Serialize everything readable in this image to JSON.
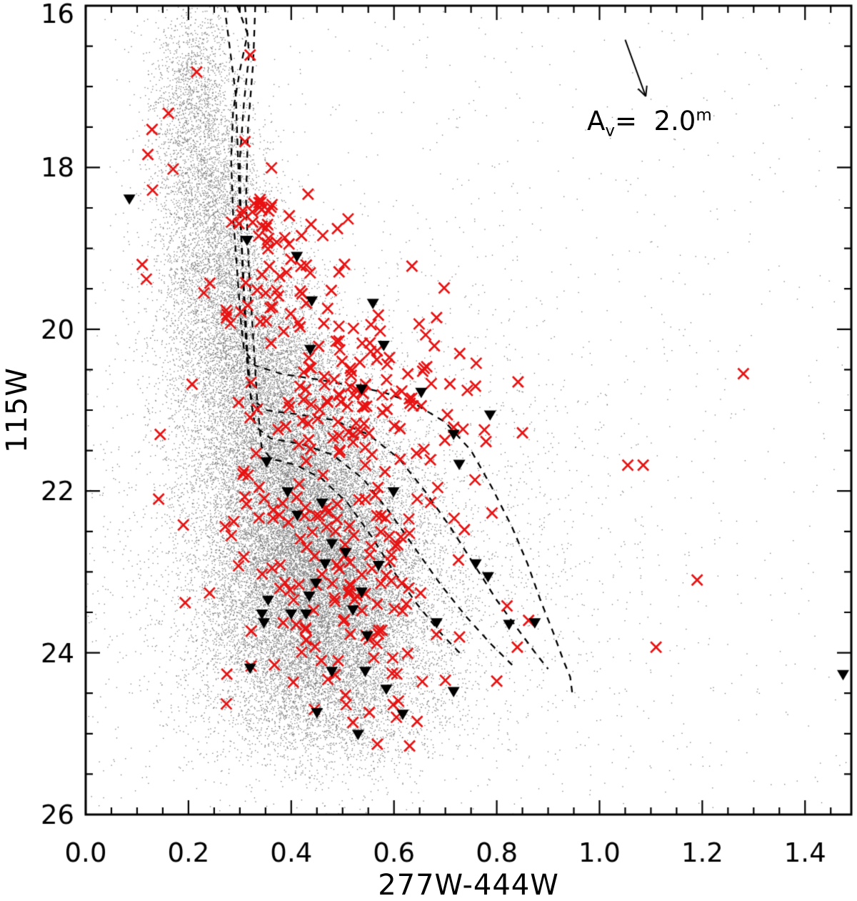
{
  "chart_data": {
    "type": "scatter",
    "title": "",
    "xlabel": "277W-444W",
    "ylabel": "115W",
    "xlim": [
      0.0,
      1.49
    ],
    "ylim": [
      16,
      26
    ],
    "xticks": [
      0.0,
      0.2,
      0.4,
      0.6,
      0.8,
      1.0,
      1.2,
      1.4
    ],
    "xtick_labels": [
      "0.0",
      "0.2",
      "0.4",
      "0.6",
      "0.8",
      "1.0",
      "1.2",
      "1.4"
    ],
    "yticks": [
      16,
      18,
      20,
      22,
      24,
      26
    ],
    "ytick_labels": [
      "16",
      "18",
      "20",
      "22",
      "24",
      "26"
    ],
    "x_minor_step": 0.05,
    "y_minor_step": 0.5,
    "grid": false,
    "legend": "none",
    "annotation": {
      "base": "A",
      "sub": "v",
      "mid": "=  2.0",
      "sup": "m"
    },
    "reddening_vector": {
      "x1": 1.05,
      "y1": 16.42,
      "x2": 1.09,
      "y2": 17.12
    },
    "colors": {
      "frame": "#000000",
      "background_dots": "#787878",
      "red_crosses": "#e81212",
      "black_triangles": "#000000",
      "isochrones": "#000000"
    },
    "series": [
      {
        "name": "gray-dots",
        "marker": "dot",
        "color": "#787878",
        "seed": 12345,
        "clusters": [
          {
            "n": 900,
            "cx": 0.21,
            "cy": 16.8,
            "sx": 0.042,
            "sy": 0.5
          },
          {
            "n": 1400,
            "cx": 0.225,
            "cy": 17.8,
            "sx": 0.052,
            "sy": 0.55
          },
          {
            "n": 1900,
            "cx": 0.26,
            "cy": 18.8,
            "sx": 0.062,
            "sy": 0.55
          },
          {
            "n": 2600,
            "cx": 0.3,
            "cy": 19.8,
            "sx": 0.075,
            "sy": 0.55
          },
          {
            "n": 3600,
            "cx": 0.35,
            "cy": 20.7,
            "sx": 0.09,
            "sy": 0.55
          },
          {
            "n": 5200,
            "cx": 0.41,
            "cy": 21.6,
            "sx": 0.1,
            "sy": 0.55
          },
          {
            "n": 6800,
            "cx": 0.44,
            "cy": 22.5,
            "sx": 0.105,
            "sy": 0.55
          },
          {
            "n": 6300,
            "cx": 0.46,
            "cy": 23.3,
            "sx": 0.11,
            "sy": 0.55
          },
          {
            "n": 3800,
            "cx": 0.47,
            "cy": 24.1,
            "sx": 0.115,
            "sy": 0.5
          },
          {
            "n": 1300,
            "cx": 0.48,
            "cy": 24.8,
            "sx": 0.115,
            "sy": 0.4
          },
          {
            "n": 2600,
            "cx": 0.5,
            "cy": 22.8,
            "sx": 0.28,
            "sy": 1.5
          },
          {
            "n": 1000,
            "cx": 0.6,
            "cy": 21.0,
            "sx": 0.42,
            "sy": 2.6
          }
        ],
        "uniform": {
          "n": 550,
          "x0": 0.02,
          "x1": 1.47,
          "y0": 16.05,
          "y1": 25.9
        },
        "points": []
      },
      {
        "name": "red-x-markers",
        "marker": "x",
        "color": "#e81212",
        "seed": 98765,
        "clusters": [
          {
            "n": 18,
            "cx": 0.335,
            "cy": 18.62,
            "sx": 0.025,
            "sy": 0.22
          },
          {
            "n": 60,
            "cx": 0.405,
            "cy": 19.55,
            "sx": 0.068,
            "sy": 0.62
          },
          {
            "n": 70,
            "cx": 0.5,
            "cy": 20.78,
            "sx": 0.09,
            "sy": 0.45
          },
          {
            "n": 22,
            "cx": 0.615,
            "cy": 21.1,
            "sx": 0.07,
            "sy": 0.55
          },
          {
            "n": 10,
            "cx": 0.73,
            "cy": 21.0,
            "sx": 0.045,
            "sy": 0.65
          },
          {
            "n": 16,
            "cx": 0.335,
            "cy": 21.9,
            "sx": 0.035,
            "sy": 0.9
          },
          {
            "n": 95,
            "cx": 0.465,
            "cy": 23.15,
            "sx": 0.09,
            "sy": 0.82
          },
          {
            "n": 30,
            "cx": 0.64,
            "cy": 23.3,
            "sx": 0.065,
            "sy": 0.85
          },
          {
            "n": 12,
            "cx": 0.56,
            "cy": 22.1,
            "sx": 0.06,
            "sy": 0.4
          }
        ],
        "points": [
          [
            0.216,
            16.82
          ],
          [
            0.32,
            16.61
          ],
          [
            0.161,
            17.33
          ],
          [
            0.129,
            17.53
          ],
          [
            0.121,
            17.84
          ],
          [
            0.17,
            18.02
          ],
          [
            0.13,
            18.28
          ],
          [
            0.31,
            17.68
          ],
          [
            0.11,
            19.2
          ],
          [
            0.118,
            19.38
          ],
          [
            0.23,
            19.55
          ],
          [
            0.207,
            20.68
          ],
          [
            0.145,
            21.3
          ],
          [
            0.142,
            22.1
          ],
          [
            0.19,
            22.42
          ],
          [
            0.241,
            23.26
          ],
          [
            0.635,
            19.22
          ],
          [
            0.728,
            20.3
          ],
          [
            0.76,
            20.42
          ],
          [
            0.85,
            21.28
          ],
          [
            1.28,
            20.55
          ],
          [
            1.055,
            21.68
          ],
          [
            1.085,
            21.68
          ],
          [
            1.19,
            23.1
          ],
          [
            1.11,
            23.93
          ],
          [
            0.84,
            23.93
          ],
          [
            0.82,
            23.42
          ],
          [
            0.862,
            23.6
          ],
          [
            0.8,
            24.35
          ],
          [
            0.645,
            24.85
          ],
          [
            0.7,
            24.34
          ],
          [
            0.52,
            24.86
          ],
          [
            0.445,
            24.7
          ]
        ]
      },
      {
        "name": "black-down-triangles",
        "marker": "triangle-down",
        "color": "#000000",
        "seed": 0,
        "clusters": [],
        "points": [
          [
            0.085,
            18.39
          ],
          [
            0.314,
            18.9
          ],
          [
            0.411,
            19.1
          ],
          [
            0.44,
            19.65
          ],
          [
            0.559,
            19.68
          ],
          [
            0.58,
            20.2
          ],
          [
            0.437,
            20.25
          ],
          [
            0.537,
            20.74
          ],
          [
            0.653,
            20.78
          ],
          [
            0.787,
            21.06
          ],
          [
            0.716,
            21.3
          ],
          [
            0.352,
            21.64
          ],
          [
            0.727,
            21.67
          ],
          [
            0.393,
            22.01
          ],
          [
            0.599,
            22.01
          ],
          [
            0.412,
            22.3
          ],
          [
            0.46,
            22.15
          ],
          [
            0.479,
            22.65
          ],
          [
            0.506,
            22.76
          ],
          [
            0.466,
            22.9
          ],
          [
            0.759,
            22.9
          ],
          [
            0.57,
            22.92
          ],
          [
            0.783,
            23.06
          ],
          [
            0.448,
            23.14
          ],
          [
            0.537,
            23.25
          ],
          [
            0.435,
            23.3
          ],
          [
            0.355,
            23.35
          ],
          [
            0.343,
            23.52
          ],
          [
            0.429,
            23.52
          ],
          [
            0.4,
            23.52
          ],
          [
            0.347,
            23.63
          ],
          [
            0.683,
            23.63
          ],
          [
            0.874,
            23.63
          ],
          [
            0.824,
            23.65
          ],
          [
            0.52,
            23.47
          ],
          [
            0.548,
            23.79
          ],
          [
            0.32,
            24.19
          ],
          [
            0.479,
            24.23
          ],
          [
            0.544,
            24.23
          ],
          [
            1.474,
            24.27
          ],
          [
            0.585,
            24.45
          ],
          [
            0.716,
            24.48
          ],
          [
            0.45,
            24.74
          ],
          [
            0.617,
            24.76
          ],
          [
            0.53,
            25.01
          ]
        ]
      }
    ],
    "isochrones": {
      "color": "#000000",
      "dash": [
        9,
        8
      ],
      "curves": [
        [
          [
            0.295,
            16.0
          ],
          [
            0.315,
            16.35
          ],
          [
            0.3,
            16.8
          ],
          [
            0.287,
            17.3
          ],
          [
            0.283,
            17.9
          ],
          [
            0.287,
            18.6
          ],
          [
            0.295,
            19.3
          ],
          [
            0.302,
            19.9
          ],
          [
            0.308,
            20.25
          ],
          [
            0.33,
            20.45
          ],
          [
            0.38,
            20.55
          ],
          [
            0.45,
            20.62
          ],
          [
            0.52,
            20.7
          ],
          [
            0.58,
            20.78
          ],
          [
            0.64,
            20.92
          ],
          [
            0.7,
            21.15
          ],
          [
            0.75,
            21.5
          ],
          [
            0.79,
            21.95
          ],
          [
            0.83,
            22.45
          ],
          [
            0.86,
            22.9
          ],
          [
            0.885,
            23.35
          ],
          [
            0.91,
            23.75
          ],
          [
            0.93,
            24.1
          ],
          [
            0.943,
            24.3
          ],
          [
            0.948,
            24.55
          ]
        ],
        [
          [
            0.27,
            16.0
          ],
          [
            0.28,
            16.5
          ],
          [
            0.292,
            17.1
          ],
          [
            0.296,
            17.8
          ],
          [
            0.3,
            18.5
          ],
          [
            0.305,
            19.2
          ],
          [
            0.31,
            19.9
          ],
          [
            0.315,
            20.5
          ],
          [
            0.322,
            20.85
          ],
          [
            0.35,
            21.0
          ],
          [
            0.41,
            21.05
          ],
          [
            0.48,
            21.12
          ],
          [
            0.55,
            21.3
          ],
          [
            0.61,
            21.6
          ],
          [
            0.66,
            22.0
          ],
          [
            0.71,
            22.45
          ],
          [
            0.755,
            22.9
          ],
          [
            0.8,
            23.35
          ],
          [
            0.84,
            23.7
          ],
          [
            0.875,
            24.0
          ],
          [
            0.9,
            24.2
          ]
        ],
        [
          [
            0.31,
            16.0
          ],
          [
            0.318,
            16.6
          ],
          [
            0.308,
            17.2
          ],
          [
            0.3,
            17.9
          ],
          [
            0.302,
            18.7
          ],
          [
            0.308,
            19.5
          ],
          [
            0.315,
            20.3
          ],
          [
            0.322,
            20.9
          ],
          [
            0.33,
            21.2
          ],
          [
            0.36,
            21.35
          ],
          [
            0.42,
            21.42
          ],
          [
            0.48,
            21.55
          ],
          [
            0.54,
            21.85
          ],
          [
            0.59,
            22.25
          ],
          [
            0.64,
            22.7
          ],
          [
            0.69,
            23.15
          ],
          [
            0.74,
            23.55
          ],
          [
            0.79,
            23.9
          ],
          [
            0.83,
            24.15
          ]
        ],
        [
          [
            0.33,
            16.0
          ],
          [
            0.326,
            16.7
          ],
          [
            0.316,
            17.5
          ],
          [
            0.312,
            18.4
          ],
          [
            0.318,
            19.3
          ],
          [
            0.326,
            20.1
          ],
          [
            0.334,
            20.9
          ],
          [
            0.342,
            21.45
          ],
          [
            0.36,
            21.6
          ],
          [
            0.41,
            21.68
          ],
          [
            0.46,
            21.85
          ],
          [
            0.51,
            22.15
          ],
          [
            0.555,
            22.55
          ],
          [
            0.6,
            23.0
          ],
          [
            0.645,
            23.4
          ],
          [
            0.69,
            23.75
          ],
          [
            0.735,
            24.05
          ]
        ]
      ]
    }
  }
}
